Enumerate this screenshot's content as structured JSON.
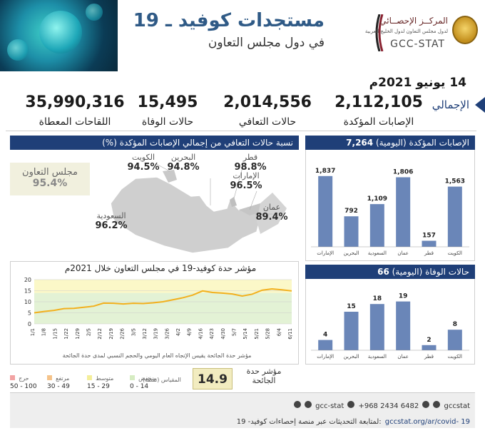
{
  "header": {
    "title_main": "مستجدات كوفيد ـ 19",
    "title_sub": "في دول مجلس التعاون",
    "org_ar": "المركــز الإحصــائي",
    "org_ar_sub": "لدول مجلس التعاون لدول الخليج العربية",
    "org_en": "GCC-STAT"
  },
  "date": "14 يونيو 2021م",
  "totals": {
    "label": "الإجمالي",
    "confirmed": {
      "value": "2,112,105",
      "label": "الإصابات المؤكدة"
    },
    "recovered": {
      "value": "2,014,556",
      "label": "حالات التعافي"
    },
    "deaths": {
      "value": "15,495",
      "label": "حالات الوفاة"
    },
    "vaccines": {
      "value": "35,990,316",
      "label": "اللقاحات المعطاة"
    }
  },
  "recovery_map": {
    "title": "نسبة حالات التعافي من إجمالي الإصابات المؤكدة (%)",
    "gcc": {
      "name": "مجلس التعاون",
      "pct": "95.4%"
    },
    "countries": [
      {
        "key": "kuwait",
        "name": "الكويت",
        "pct": "94.5%"
      },
      {
        "key": "bahrain",
        "name": "البحرين",
        "pct": "94.8%"
      },
      {
        "key": "qatar",
        "name": "قطر",
        "pct": "98.8%"
      },
      {
        "key": "uae",
        "name": "الإمارات",
        "pct": "96.5%"
      },
      {
        "key": "oman",
        "name": "عمان",
        "pct": "89.4%"
      },
      {
        "key": "saudi",
        "name": "السعودية",
        "pct": "96.2%"
      }
    ]
  },
  "severity": {
    "title": "مؤشر حدة كوفيد-19 في مجلس التعاون خلال 2021م",
    "note": "مؤشر حدة الجائحة يقيس الإتجاه العام اليومي والحجم النسبي لمدى حدة الجائحة",
    "gauge_label": "مؤشر حدة الجائحة",
    "gauge_value": "14.9",
    "scale_label": "المقياس (نقطة)",
    "legend": [
      {
        "name": "منخفض",
        "range": "0 - 14",
        "color": "#d6ecc2"
      },
      {
        "name": "متوسط",
        "range": "15 - 29",
        "color": "#f4ee9a"
      },
      {
        "name": "مرتفع",
        "range": "30 - 49",
        "color": "#f5c38a"
      },
      {
        "name": "حرج",
        "range": "50 - 100",
        "color": "#f2a3a3"
      }
    ]
  },
  "chart_data": [
    {
      "type": "line",
      "title": "مؤشر حدة كوفيد-19 في مجلس التعاون خلال 2021م",
      "x_ticks": [
        "1/1",
        "1/8",
        "1/15",
        "1/22",
        "1/29",
        "2/5",
        "2/12",
        "2/19",
        "2/26",
        "3/5",
        "3/12",
        "3/19",
        "3/26",
        "4/2",
        "4/9",
        "4/16",
        "4/23",
        "4/30",
        "5/7",
        "5/14",
        "5/21",
        "5/28",
        "6/4",
        "6/11"
      ],
      "y_ticks": [
        "0",
        "5",
        "10",
        "15",
        "20"
      ],
      "ylim": [
        0,
        20
      ],
      "series": [
        {
          "values": [
            5.0,
            5.6,
            6.1,
            6.9,
            7.0,
            7.5,
            8.0,
            9.4,
            9.3,
            9.0,
            9.3,
            9.2,
            9.5,
            10.0,
            10.9,
            11.8,
            13.0,
            14.9,
            14.2,
            13.9,
            13.5,
            12.6,
            13.4,
            15.2,
            15.8,
            15.4,
            14.9
          ]
        }
      ],
      "bands": [
        {
          "from": 0,
          "to": 14,
          "color": "#e3f2d5"
        },
        {
          "from": 14,
          "to": 20,
          "color": "#fbf8c8"
        }
      ]
    },
    {
      "type": "bar",
      "title": "الإصابات المؤكدة (اليومية)",
      "total": "7,264",
      "categories": [
        "الإمارات",
        "البحرين",
        "السعودية",
        "عمان",
        "قطر",
        "الكويت"
      ],
      "values": [
        1837,
        792,
        1109,
        1806,
        157,
        1563
      ],
      "labels": [
        "1,837",
        "792",
        "1,109",
        "1,806",
        "157",
        "1,563"
      ],
      "ylim": [
        0,
        2000
      ]
    },
    {
      "type": "bar",
      "title": "حالات الوفاة (اليومية)",
      "total": "66",
      "categories": [
        "الإمارات",
        "البحرين",
        "السعودية",
        "عمان",
        "قطر",
        "الكويت"
      ],
      "values": [
        4,
        15,
        18,
        19,
        2,
        8
      ],
      "labels": [
        "4",
        "15",
        "18",
        "19",
        "2",
        "8"
      ],
      "ylim": [
        0,
        20
      ]
    }
  ],
  "footer": {
    "social": "gcc-stat",
    "phone": "+968 2434 6482",
    "handle": "gccstat",
    "link_text": "لمتابعة التحديثات عبر منصة إحصاءات كوفيد- 19:",
    "url": "gccstat.org/ar/covid- 19"
  },
  "colors": {
    "primary": "#1f3f78",
    "bar": "#6a86b8",
    "line": "#f2b01e"
  }
}
